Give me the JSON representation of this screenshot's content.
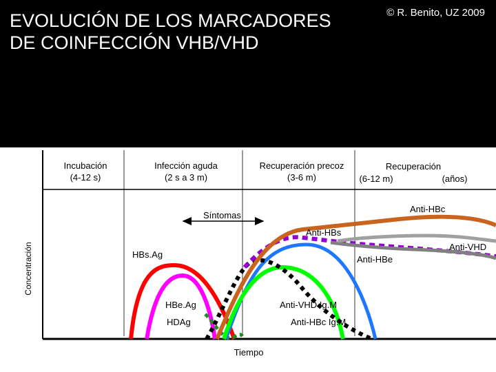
{
  "title_line1": "EVOLUCIÓN DE LOS MARCADORES",
  "title_line2": "DE COINFECCIÓN VHB/VHD",
  "credit": "© R. Benito, UZ 2009",
  "phases": [
    {
      "name": "Incubación",
      "duration": "(4-12 s)"
    },
    {
      "name": "Infección aguda",
      "duration": "(2 s a 3 m)"
    },
    {
      "name": "Recuperación precoz",
      "duration": "(3-6 m)"
    },
    {
      "name": "Recuperación",
      "duration": "(6-12 m)",
      "extra": "(años)"
    }
  ],
  "y_axis_label": "Concentración",
  "x_axis_label": "Tiempo",
  "symptoms_label": "Síntomas",
  "markers": {
    "hbsag": "HBs.Ag",
    "hbeag": "HBe.Ag",
    "hdag": "HDAg",
    "anti_hbc": "Anti-HBc",
    "anti_hbs": "Anti-HBs",
    "anti_hbe": "Anti-HBe",
    "anti_vhd": "Anti-VHD",
    "anti_vhd_igm": "Anti-VHD Ig.M",
    "anti_hbc_igm": "Anti-HBc Ig.M"
  },
  "colors": {
    "hbsag": "#ff0000",
    "hbeag": "#ff00ff",
    "hdag": "#228b22",
    "anti_hbc": "#c8641e",
    "anti_hbs": "#a0a0a0",
    "anti_hbe": "#808080",
    "anti_vhd": "#9400d3",
    "anti_vhd_igm": "#000000",
    "anti_hbc_igm": "#1e78ff",
    "green_igm": "#00ff00"
  }
}
